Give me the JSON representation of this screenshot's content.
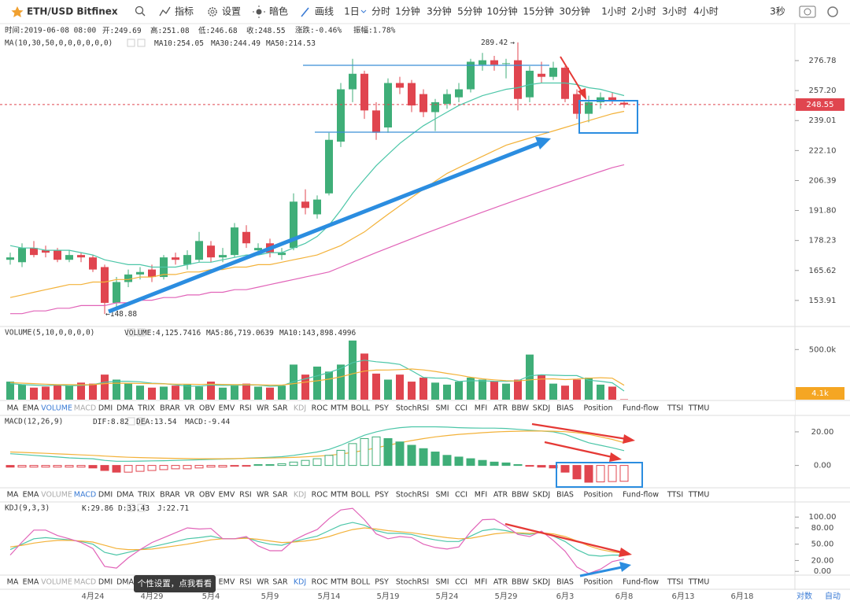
{
  "toolbar": {
    "symbol": "ETH/USD Bitfinex",
    "tools": [
      "指标",
      "设置",
      "暗色",
      "画线"
    ],
    "intervals": [
      "1日",
      "分时",
      "1分钟",
      "3分钟",
      "5分钟",
      "10分钟",
      "15分钟",
      "30分钟",
      "1小时",
      "2小时",
      "3小时",
      "4小时"
    ],
    "active_interval": 0,
    "refresh": "3秒"
  },
  "info": {
    "time": "时间:2019-06-08 08:00",
    "open": "开:",
    "high": "高:",
    "low": "低:",
    "close": "收:",
    "change": "涨跌:-0.46%",
    "amplitude": "振幅:1.78%"
  },
  "chart_data": [
    {
      "type": "candlestick",
      "indicator": "MA(10,30,50,0,0,0,0,0,0)",
      "yscale": "log",
      "up_color": "#3fae78",
      "down_color": "#e0454f",
      "high_arrow": "→",
      "low_arrow": "←",
      "high_marker_index": 43,
      "low_marker_index": 8,
      "open": [
        170,
        169,
        175,
        174,
        174,
        170,
        172,
        171,
        167,
        153,
        161,
        164,
        166,
        163,
        171,
        168,
        170,
        176,
        171,
        172,
        182,
        174,
        177,
        172,
        175,
        196,
        190,
        200,
        227,
        258,
        268,
        245,
        235,
        262,
        262,
        255,
        244,
        249,
        253,
        258,
        274,
        277,
        275,
        277,
        253,
        268,
        266,
        272,
        255,
        243,
        250,
        253,
        249.69
      ],
      "close": [
        171,
        175,
        172,
        173,
        170,
        172,
        171,
        166,
        153,
        161,
        164,
        165,
        163,
        171,
        170,
        172,
        178,
        171,
        172,
        184,
        177,
        175,
        173,
        173,
        196,
        193,
        197,
        228,
        258,
        268,
        245,
        232,
        262,
        259,
        248,
        244,
        250,
        255,
        258,
        276,
        277,
        274,
        275,
        252,
        270,
        266,
        272,
        252,
        243,
        250,
        253,
        251,
        248.55
      ],
      "high": [
        173,
        177,
        178,
        176,
        175,
        174,
        173,
        172,
        168,
        163,
        166,
        167,
        168,
        172,
        173,
        174,
        182,
        178,
        175,
        186,
        185,
        177,
        179,
        175,
        200,
        202,
        199,
        232,
        262,
        278,
        270,
        250,
        265,
        266,
        264,
        258,
        252,
        258,
        262,
        278,
        282,
        280,
        278,
        289.42,
        273,
        276,
        276,
        273,
        258,
        254,
        256,
        256,
        251.08
      ],
      "low": [
        168,
        167,
        171,
        171,
        169,
        169,
        169,
        165,
        148.88,
        151,
        159,
        162,
        161,
        162,
        168,
        166,
        169,
        169,
        169,
        171,
        175,
        172,
        171,
        170,
        174,
        190,
        188,
        199,
        224,
        250,
        240,
        228,
        232,
        255,
        244,
        241,
        233,
        246,
        250,
        256,
        270,
        270,
        265,
        245,
        250,
        262,
        264,
        250,
        240,
        238,
        246,
        249,
        246.68
      ],
      "series": [
        {
          "name": "MA10:",
          "color": "#4cc6a8",
          "values": [
            176,
            175,
            175,
            174,
            174,
            174,
            173,
            172,
            170,
            169,
            168,
            168,
            167,
            167,
            167,
            168,
            169,
            169,
            170,
            171,
            172,
            172,
            173,
            173,
            175,
            177,
            180,
            185,
            192,
            200,
            207,
            214,
            220,
            226,
            231,
            236,
            240,
            244,
            248,
            251,
            254,
            256,
            258,
            259,
            261,
            262,
            262,
            262,
            261,
            259,
            258,
            256,
            254.05
          ]
        },
        {
          "name": "MA30:",
          "color": "#f3b23a",
          "values": [
            155,
            156,
            157,
            158,
            159,
            160,
            160,
            161,
            161,
            162,
            162,
            163,
            163,
            164,
            164,
            165,
            165,
            166,
            166,
            167,
            167,
            168,
            168,
            169,
            170,
            171,
            172,
            174,
            176,
            179,
            182,
            186,
            190,
            194,
            198,
            202,
            206,
            210,
            213,
            216,
            219,
            222,
            225,
            227,
            229,
            231,
            233,
            235,
            237,
            239,
            241,
            243,
            244.49
          ]
        },
        {
          "name": "MA50:",
          "color": "#e163b8",
          "values": [
            149,
            149,
            150,
            150,
            151,
            151,
            152,
            152,
            152,
            153,
            153,
            154,
            154,
            155,
            155,
            156,
            156,
            157,
            157,
            158,
            158,
            159,
            160,
            161,
            162,
            163,
            164,
            165,
            167,
            169,
            171,
            173,
            175,
            177,
            179,
            181,
            183,
            185,
            187,
            189,
            191,
            193,
            195,
            197,
            199,
            201,
            203,
            205,
            207,
            209,
            211,
            213,
            214.53
          ]
        }
      ],
      "ylim": [
        144.4,
        303.0
      ],
      "yticks": [
        153.91,
        165.62,
        178.23,
        {
          "value": 191.8,
          "label": "191.80"
        },
        206.39,
        {
          "value": 222.1,
          "label": "222.10"
        },
        239.01,
        {
          "value": 257.2,
          "label": "257.20"
        },
        276.78
      ]
    },
    {
      "type": "bar",
      "indicator": "VOLUME(5,10,0,0,0,0)",
      "name": "VOLUME:",
      "last_label": "4,125.7416",
      "axis_tag": "4.1k",
      "tag_color": "#f5a623",
      "values": [
        180000,
        150000,
        120000,
        130000,
        150000,
        140000,
        170000,
        160000,
        250000,
        200000,
        160000,
        140000,
        120000,
        130000,
        140000,
        150000,
        130000,
        180000,
        120000,
        140000,
        160000,
        130000,
        120000,
        140000,
        350000,
        250000,
        330000,
        280000,
        350000,
        590000,
        460000,
        260000,
        200000,
        250000,
        180000,
        220000,
        170000,
        150000,
        180000,
        220000,
        200000,
        180000,
        160000,
        200000,
        450000,
        250000,
        160000,
        140000,
        200000,
        220000,
        150000,
        130000,
        4125.7416
      ],
      "series": [
        {
          "name": "MA5:",
          "color": "#4cc6a8",
          "last_label": "86,719.0639",
          "values": [
            160000,
            150000,
            145000,
            140000,
            146000,
            138000,
            142000,
            150000,
            174000,
            184000,
            184000,
            178000,
            164000,
            160000,
            148000,
            136000,
            134000,
            146000,
            142000,
            144000,
            146000,
            146000,
            134000,
            138000,
            180000,
            208000,
            238000,
            270000,
            312000,
            370000,
            394000,
            378000,
            368000,
            352000,
            290000,
            222000,
            216000,
            214000,
            182000,
            188000,
            188000,
            184000,
            182000,
            188000,
            238000,
            248000,
            244000,
            240000,
            240000,
            194000,
            184000,
            168000,
            86719.0639
          ]
        },
        {
          "name": "MA10:",
          "color": "#f3b23a",
          "last_label": "143,898.4996",
          "values": [
            170000,
            165000,
            160000,
            155000,
            150000,
            150000,
            148000,
            150000,
            160000,
            165000,
            164000,
            162000,
            160000,
            158000,
            155000,
            155000,
            152000,
            155000,
            152000,
            150000,
            150000,
            148000,
            145000,
            145000,
            160000,
            175000,
            188000,
            205000,
            228000,
            258000,
            285000,
            295000,
            296000,
            300000,
            306000,
            297000,
            282000,
            262000,
            245000,
            224000,
            208000,
            198000,
            190000,
            186000,
            198000,
            206000,
            208000,
            200000,
            206000,
            214000,
            219000,
            214000,
            143898.4996
          ]
        }
      ],
      "ylim": [
        0,
        730000
      ],
      "yticks": [
        {
          "value": 500000,
          "label": "500.0k"
        }
      ]
    },
    {
      "type": "macd",
      "indicator": "MACD(12,26,9)",
      "up_color": "#3fae78",
      "down_color": "#e0454f",
      "series": [
        {
          "name": "DIF:",
          "color": "#4cc6a8",
          "values": [
            7,
            6.5,
            6,
            5.5,
            5,
            4.5,
            4.2,
            4,
            3,
            2.5,
            2.5,
            2.6,
            2.7,
            2.8,
            3,
            3.2,
            3.4,
            3.6,
            3.8,
            4,
            4.3,
            4.6,
            4.9,
            5.2,
            6,
            7,
            8,
            9.5,
            12,
            15,
            18,
            20,
            21.5,
            22.5,
            23,
            23,
            23,
            22.8,
            22.5,
            22.3,
            22.2,
            22.2,
            22,
            21.5,
            21,
            20.5,
            20,
            18.5,
            16,
            13.5,
            12,
            10.5,
            8.82
          ]
        },
        {
          "name": "DEA:",
          "color": "#f3b23a",
          "values": [
            8,
            7.8,
            7.5,
            7.2,
            6.9,
            6.6,
            6.3,
            6,
            5.6,
            5.2,
            4.9,
            4.7,
            4.5,
            4.3,
            4.2,
            4.1,
            4,
            4,
            4,
            4.1,
            4.2,
            4.3,
            4.4,
            4.6,
            4.8,
            5.1,
            5.5,
            6,
            6.8,
            7.8,
            9,
            10.5,
            12,
            13.5,
            14.8,
            16,
            17,
            17.8,
            18.5,
            19,
            19.5,
            19.9,
            20.2,
            20.4,
            20.5,
            20.5,
            20.4,
            20.1,
            19.5,
            18.5,
            17,
            15.5,
            13.54
          ]
        },
        {
          "name": "MACD:",
          "color": "#e163b8",
          "style": "bar",
          "values": [
            -1,
            -1,
            -1,
            -1,
            -1,
            -1,
            -1,
            -1.5,
            -3,
            -4,
            -4,
            -3.5,
            -3,
            -2.5,
            -2,
            -2,
            -1.5,
            -1,
            -1,
            -0.5,
            -0.5,
            0.5,
            0.5,
            1,
            2,
            3,
            4,
            6,
            9,
            13,
            16,
            17,
            16,
            14,
            12,
            10,
            8,
            6,
            5,
            4,
            3,
            2,
            1.5,
            0.5,
            -0.5,
            -1,
            -1.5,
            -4,
            -8,
            -10,
            -9.8,
            -9.6,
            -9.44
          ]
        }
      ],
      "ylim": [
        -13.3,
        29.8
      ],
      "yticks": [
        {
          "value": 20,
          "label": "20.00"
        },
        {
          "value": 0,
          "label": "0.00"
        }
      ]
    },
    {
      "type": "line",
      "indicator": "KDJ(9,3,3)",
      "series": [
        {
          "name": "K:",
          "color": "#4cc6a8",
          "values": [
            40,
            50,
            60,
            62,
            60,
            58,
            55,
            50,
            35,
            30,
            35,
            40,
            45,
            50,
            55,
            60,
            62,
            65,
            60,
            60,
            62,
            55,
            50,
            48,
            55,
            60,
            65,
            75,
            85,
            90,
            85,
            75,
            70,
            70,
            68,
            62,
            58,
            55,
            55,
            65,
            75,
            78,
            75,
            70,
            68,
            72,
            65,
            55,
            40,
            30,
            28,
            30,
            29.86
          ]
        },
        {
          "name": "D:",
          "color": "#f3b23a",
          "values": [
            45,
            48,
            52,
            55,
            57,
            57,
            56,
            54,
            48,
            42,
            40,
            40,
            41,
            44,
            47,
            50,
            54,
            58,
            60,
            60,
            61,
            59,
            56,
            53,
            54,
            56,
            59,
            64,
            71,
            77,
            80,
            78,
            75,
            73,
            71,
            68,
            65,
            62,
            60,
            61,
            65,
            69,
            71,
            71,
            70,
            71,
            69,
            64,
            56,
            47,
            40,
            36,
            33.43
          ]
        },
        {
          "name": "J:",
          "color": "#e163b8",
          "values": [
            30,
            54,
            76,
            76,
            66,
            60,
            53,
            42,
            9,
            6,
            25,
            40,
            53,
            62,
            71,
            80,
            78,
            79,
            60,
            60,
            64,
            47,
            38,
            38,
            57,
            68,
            77,
            97,
            113,
            116,
            95,
            69,
            60,
            64,
            62,
            50,
            44,
            41,
            45,
            73,
            95,
            96,
            83,
            68,
            64,
            74,
            57,
            37,
            8,
            -4,
            4,
            18,
            22.71
          ]
        }
      ],
      "ylim": [
        -6.9,
        127.8
      ],
      "yticks": [
        {
          "value": 100,
          "label": "100.00"
        },
        {
          "value": 80,
          "label": "80.00"
        },
        {
          "value": 50,
          "label": "50.00"
        },
        {
          "value": 20,
          "label": "20.00"
        },
        {
          "value": 0,
          "label": "0.00"
        }
      ]
    }
  ],
  "date_axis": [
    "4月24",
    "4月29",
    "5月4",
    "5月9",
    "5月14",
    "5月19",
    "5月24",
    "5月29",
    "6月3",
    "6月8",
    "6月13",
    "6月18"
  ],
  "tabs": [
    "MA",
    "EMA",
    "VOLUME",
    "MACD",
    "DMI",
    "DMA",
    "TRIX",
    "BRAR",
    "VR",
    "OBV",
    "EMV",
    "RSI",
    "WR",
    "SAR",
    "KDJ",
    "ROC",
    "MTM",
    "BOLL",
    "PSY",
    "StochRSI",
    "SMI",
    "CCI",
    "MFI",
    "ATR",
    "BBW",
    "SKDJ",
    "BIAS",
    "Position",
    "Fund-flow",
    "TTSI",
    "TTMU"
  ],
  "tabs_active": [
    2,
    3,
    14
  ],
  "axis_modes": [
    "对数",
    "自动"
  ],
  "tooltip": "个性设置，点我看看"
}
